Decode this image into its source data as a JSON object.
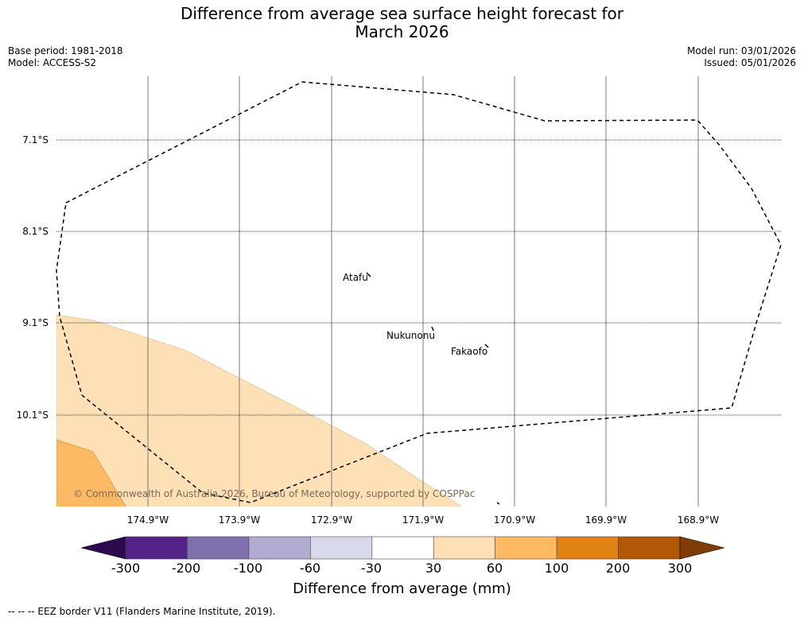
{
  "title_line1": "Difference from average sea surface height forecast for",
  "title_line2": "March 2026",
  "base_period": "Base period: 1981-2018",
  "model": "Model: ACCESS-S2",
  "model_run": "Model run: 03/01/2026",
  "issued": "Issued: 05/01/2026",
  "latitudes": [
    "7.1°S",
    "8.1°S",
    "9.1°S",
    "10.1°S"
  ],
  "longitudes": [
    "174.9°W",
    "173.9°W",
    "172.9°W",
    "171.9°W",
    "170.9°W",
    "169.9°W",
    "168.9°W"
  ],
  "places": [
    "Atafu",
    "Nukunonu",
    "Fakaofo"
  ],
  "copyright": "© Commonwealth of Australia 2026, Bureau of Meteorology, supported by COSPPac",
  "colorbar": {
    "label": "Difference from average (mm)",
    "ticks": [
      "-300",
      "-200",
      "-100",
      "-60",
      "-30",
      "30",
      "60",
      "100",
      "200",
      "300"
    ],
    "colors": [
      "#2d0a4e",
      "#54238a",
      "#8071ae",
      "#b2abd2",
      "#d8daeb",
      "#ffffff",
      "#fee0b6",
      "#fdb863",
      "#e08214",
      "#b35806",
      "#7f3b08"
    ]
  },
  "legend_footer": "-- -- -- EEZ border V11 (Flanders Marine Institute, 2019)."
}
